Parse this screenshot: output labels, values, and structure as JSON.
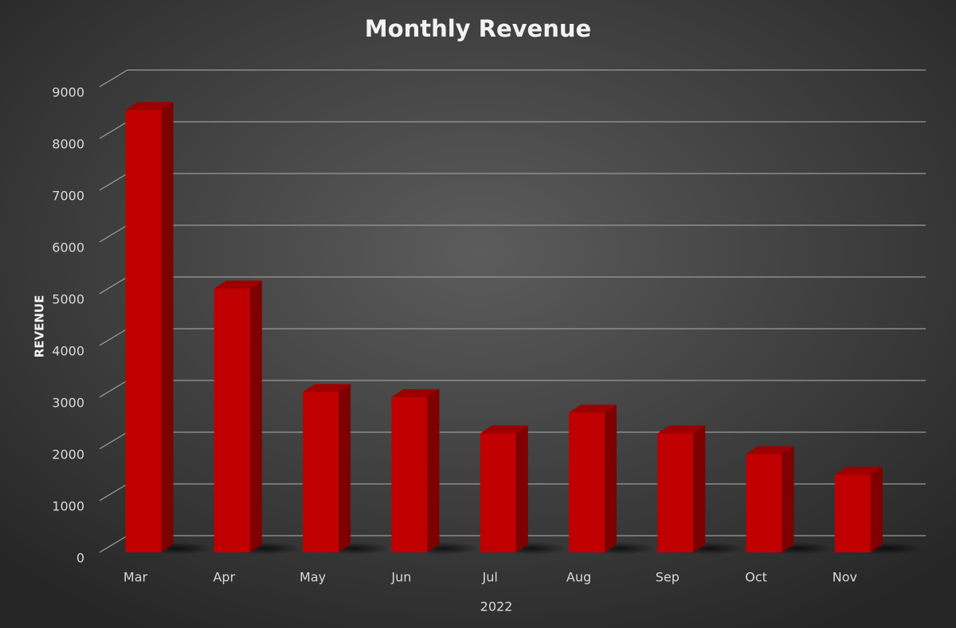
{
  "chart_data": {
    "type": "bar",
    "title": "Monthly Revenue",
    "x_label": "2022",
    "y_label": "REVENUE",
    "categories": [
      "Mar",
      "Apr",
      "May",
      "Jun",
      "Jul",
      "Aug",
      "Sep",
      "Oct",
      "Nov"
    ],
    "values": [
      8550,
      5100,
      3100,
      3000,
      2300,
      2700,
      2300,
      1900,
      1500
    ],
    "color": "#c00000",
    "ylim": [
      0,
      9000
    ],
    "yticks": [
      0,
      1000,
      2000,
      3000,
      4000,
      5000,
      6000,
      7000,
      8000,
      9000
    ],
    "grid": true
  }
}
